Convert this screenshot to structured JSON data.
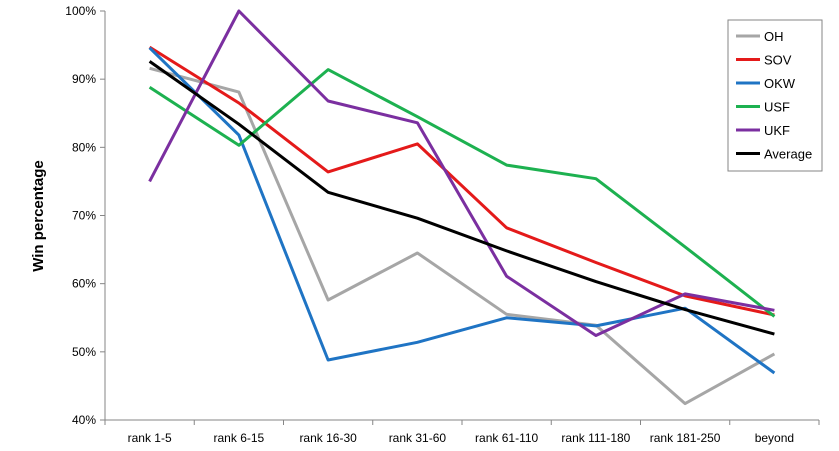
{
  "chart_data": {
    "type": "line",
    "title": "",
    "xlabel": "",
    "ylabel": "Win percentage",
    "categories": [
      "rank 1-5",
      "rank 6-15",
      "rank 16-30",
      "rank 31-60",
      "rank 61-110",
      "rank 111-180",
      "rank 181-250",
      "beyond"
    ],
    "ylim": [
      40,
      100
    ],
    "yticks": [
      40,
      50,
      60,
      70,
      80,
      90,
      100
    ],
    "ytick_labels": [
      "40%",
      "50%",
      "60%",
      "70%",
      "80%",
      "90%",
      "100%"
    ],
    "grid": false,
    "legend_position": "top-right",
    "series": [
      {
        "name": "OH",
        "color": "#a6a6a6",
        "values": [
          91.6,
          88.1,
          57.6,
          64.5,
          55.5,
          53.9,
          42.4,
          49.7
        ]
      },
      {
        "name": "SOV",
        "color": "#e41a1a",
        "values": [
          94.7,
          86.5,
          76.4,
          80.5,
          68.2,
          63.1,
          58.2,
          55.4
        ]
      },
      {
        "name": "OKW",
        "color": "#1f74c4",
        "values": [
          94.6,
          81.8,
          48.8,
          51.4,
          55.0,
          53.8,
          56.4,
          46.9
        ]
      },
      {
        "name": "USF",
        "color": "#1db150",
        "values": [
          88.8,
          80.3,
          91.4,
          84.5,
          77.4,
          75.4,
          65.4,
          55.2
        ]
      },
      {
        "name": "UKF",
        "color": "#7b2fa0",
        "values": [
          75.0,
          100.0,
          86.8,
          83.6,
          61.1,
          52.4,
          58.5,
          56.1
        ]
      },
      {
        "name": "Average",
        "color": "#000000",
        "values": [
          92.6,
          83.4,
          73.4,
          69.6,
          64.8,
          60.3,
          56.2,
          52.6
        ]
      }
    ]
  }
}
